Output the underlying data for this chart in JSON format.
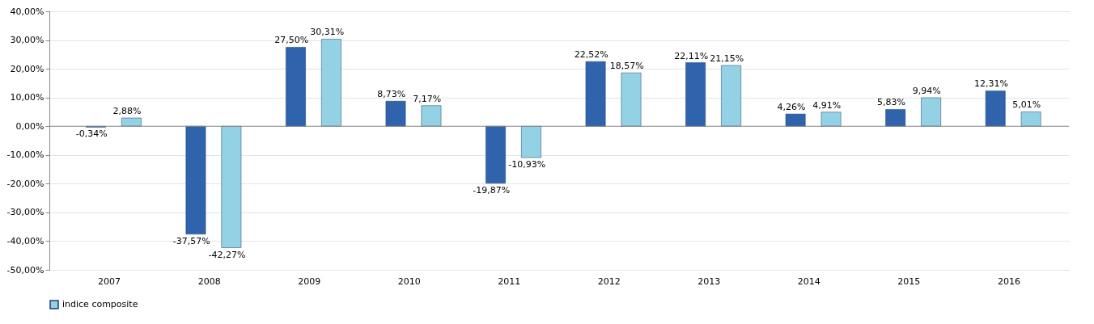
{
  "chart_data": {
    "type": "bar",
    "categories": [
      "2007",
      "2008",
      "2009",
      "2010",
      "2011",
      "2012",
      "2013",
      "2014",
      "2015",
      "2016"
    ],
    "series": [
      {
        "color": "#2f64ad",
        "values": [
          -0.34,
          -37.57,
          27.5,
          8.73,
          -19.87,
          22.52,
          22.11,
          4.26,
          5.83,
          12.31
        ],
        "value_labels": [
          "-0,34%",
          "-37,57%",
          "27,50%",
          "8,73%",
          "-19,87%",
          "22,52%",
          "22,11%",
          "4,26%",
          "5,83%",
          "12,31%"
        ]
      },
      {
        "name": "indice composite",
        "color": "#93d2e4",
        "values": [
          2.88,
          -42.27,
          30.31,
          7.17,
          -10.93,
          18.57,
          21.15,
          4.91,
          9.94,
          5.01
        ],
        "value_labels": [
          "2,88%",
          "-42,27%",
          "30,31%",
          "7,17%",
          "-10,93%",
          "18,57%",
          "21,15%",
          "4,91%",
          "9,94%",
          "5,01%"
        ]
      }
    ],
    "ylim": [
      -50,
      40
    ],
    "yticks": [
      {
        "value": -50,
        "label": "-50,00%"
      },
      {
        "value": -40,
        "label": "-40,00%"
      },
      {
        "value": -30,
        "label": "-30,00%"
      },
      {
        "value": -20,
        "label": "-20,00%"
      },
      {
        "value": -10,
        "label": "-10,00%"
      },
      {
        "value": 0,
        "label": "0,00%"
      },
      {
        "value": 10,
        "label": "10,00%"
      },
      {
        "value": 20,
        "label": "20,00%"
      },
      {
        "value": 30,
        "label": "30,00%"
      },
      {
        "value": 40,
        "label": "40,00%"
      }
    ],
    "ref_lines": [
      {
        "axis": "y",
        "value": 0,
        "color": "#888888"
      }
    ],
    "grid": "y",
    "legend": "bottom"
  }
}
